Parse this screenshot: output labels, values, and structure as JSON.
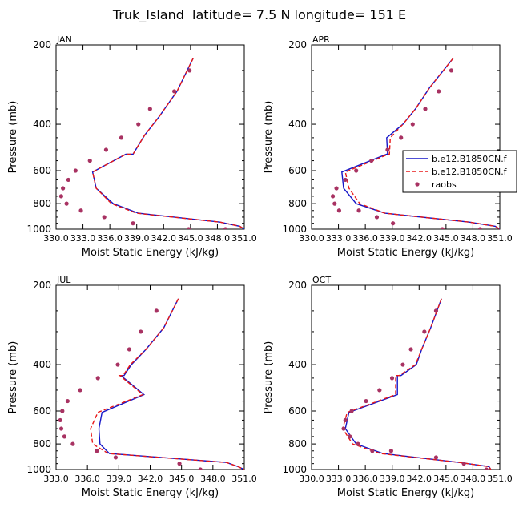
{
  "figure_title": "Truk_Island  latitude= 7.5 N longitude= 151 E",
  "colors": {
    "model_a": "#1515c8",
    "model_b": "#e81818",
    "raobs": "#a83262",
    "axis": "#000000"
  },
  "legend": {
    "entries": [
      {
        "label": "b.e12.B1850CN.f",
        "style": "solid-line",
        "color": "#1515c8"
      },
      {
        "label": "b.e12.B1850CN.f",
        "style": "dashed-line",
        "color": "#e81818"
      },
      {
        "label": "raobs",
        "style": "marker",
        "color": "#a83262"
      }
    ]
  },
  "chart_data": [
    {
      "type": "line",
      "panel": "JAN",
      "title": "JAN",
      "xlabel": "Moist Static Energy (kJ/kg)",
      "ylabel": "Pressure (mb)",
      "xlim": [
        330.03,
        351.0
      ],
      "ylim": [
        1000,
        200
      ],
      "yscale": "log",
      "xticks": [
        "330.0",
        "333.0",
        "336.0",
        "339.0",
        "342.0",
        "345.0",
        "348.0",
        "351.0"
      ],
      "yticks": [
        200,
        400,
        600,
        800,
        1000
      ],
      "series": [
        {
          "name": "b.e12.B1850CN.f",
          "style": "solid",
          "x": [
            345.3,
            343.5,
            341.5,
            339.9,
            338.6,
            337.8,
            334.1,
            334.5,
            336.4,
            339.2,
            348.3,
            350.5,
            351.0
          ],
          "y": [
            225,
            300,
            375,
            440,
            520,
            520,
            607,
            700,
            800,
            870,
            940,
            975,
            1000
          ]
        },
        {
          "name": "b.e12.B1850CN.f",
          "style": "dashed",
          "x": [
            345.3,
            343.5,
            341.5,
            339.9,
            338.6,
            337.8,
            334.1,
            334.5,
            336.2,
            339.0,
            348.3,
            350.5,
            351.0
          ],
          "y": [
            225,
            300,
            375,
            440,
            520,
            520,
            607,
            700,
            800,
            870,
            940,
            975,
            1000
          ]
        },
        {
          "name": "raobs",
          "style": "markers",
          "x": [
            344.9,
            343.2,
            340.5,
            339.2,
            337.3,
            335.6,
            333.8,
            332.2,
            331.4,
            330.8,
            330.6,
            331.2,
            332.8,
            335.4,
            338.6,
            344.8,
            348.9
          ],
          "y": [
            250,
            300,
            350,
            400,
            450,
            500,
            550,
            600,
            650,
            700,
            750,
            800,
            850,
            900,
            950,
            1000,
            1000
          ]
        }
      ]
    },
    {
      "type": "line",
      "panel": "APR",
      "title": "APR",
      "xlabel": "Moist Static Energy (kJ/kg)",
      "ylabel": "Pressure (mb)",
      "xlim": [
        330.03,
        351.0
      ],
      "ylim": [
        1000,
        200
      ],
      "yscale": "log",
      "xticks": [
        "330.0",
        "333.0",
        "336.0",
        "339.0",
        "342.0",
        "345.0",
        "348.0",
        "351.0"
      ],
      "yticks": [
        200,
        400,
        600,
        800,
        1000
      ],
      "series": [
        {
          "name": "b.e12.B1850CN.f",
          "style": "solid",
          "x": [
            345.8,
            343.2,
            341.6,
            340.2,
            338.4,
            338.5,
            338.4,
            333.4,
            333.6,
            335.0,
            338.2,
            347.6,
            350.5,
            351.0
          ],
          "y": [
            225,
            290,
            350,
            400,
            450,
            520,
            520,
            607,
            700,
            800,
            870,
            940,
            975,
            1000
          ]
        },
        {
          "name": "b.e12.B1850CN.f",
          "style": "dashed",
          "x": [
            345.8,
            343.2,
            341.6,
            340.2,
            338.8,
            338.7,
            338.6,
            333.8,
            334.2,
            335.4,
            338.2,
            347.6,
            350.5,
            351.0
          ],
          "y": [
            225,
            290,
            350,
            400,
            450,
            520,
            520,
            607,
            700,
            800,
            870,
            940,
            975,
            1000
          ]
        },
        {
          "name": "raobs",
          "style": "markers",
          "x": [
            345.6,
            344.2,
            342.7,
            341.3,
            340.0,
            338.5,
            336.7,
            335.0,
            333.8,
            332.8,
            332.4,
            332.6,
            333.1,
            335.3,
            337.3,
            339.1,
            344.6,
            348.8
          ],
          "y": [
            250,
            300,
            350,
            400,
            450,
            500,
            550,
            600,
            650,
            700,
            750,
            800,
            850,
            850,
            900,
            950,
            1000,
            1000
          ]
        }
      ]
    },
    {
      "type": "line",
      "panel": "JUL",
      "title": "JUL",
      "xlabel": "Moist Static Energy (kJ/kg)",
      "ylabel": "Pressure (mb)",
      "xlim": [
        333.0,
        351.0
      ],
      "ylim": [
        1000,
        200
      ],
      "yscale": "log",
      "xticks": [
        "333.0",
        "336.0",
        "339.0",
        "342.0",
        "345.0",
        "348.0",
        "351.0"
      ],
      "yticks": [
        200,
        400,
        600,
        800,
        1000
      ],
      "series": [
        {
          "name": "b.e12.B1850CN.f",
          "style": "solid",
          "x": [
            344.7,
            343.3,
            341.6,
            340.2,
            339.5,
            339.2,
            341.4,
            337.4,
            337.1,
            337.2,
            338.1,
            349.3,
            350.4,
            351.0
          ],
          "y": [
            225,
            290,
            350,
            400,
            440,
            440,
            520,
            607,
            700,
            800,
            870,
            940,
            975,
            1000
          ]
        },
        {
          "name": "b.e12.B1850CN.f",
          "style": "dashed",
          "x": [
            344.7,
            343.3,
            341.6,
            340.1,
            339.4,
            339.1,
            341.3,
            337.0,
            336.3,
            336.5,
            338.0,
            349.3,
            350.4,
            351.0
          ],
          "y": [
            225,
            290,
            350,
            400,
            440,
            440,
            520,
            607,
            700,
            800,
            870,
            940,
            975,
            1000
          ]
        },
        {
          "name": "raobs",
          "style": "markers",
          "x": [
            342.6,
            341.1,
            340.0,
            338.9,
            337.0,
            335.3,
            334.1,
            333.6,
            333.4,
            333.5,
            333.8,
            334.6,
            336.9,
            338.7,
            344.8,
            346.8
          ],
          "y": [
            250,
            300,
            350,
            400,
            450,
            500,
            550,
            600,
            650,
            700,
            750,
            800,
            850,
            900,
            950,
            1000
          ]
        }
      ]
    },
    {
      "type": "line",
      "panel": "OCT",
      "title": "OCT",
      "xlabel": "Moist Static Energy (kJ/kg)",
      "ylabel": "Pressure (mb)",
      "xlim": [
        330.03,
        351.0
      ],
      "ylim": [
        1000,
        200
      ],
      "yscale": "log",
      "xticks": [
        "330.0",
        "333.0",
        "336.0",
        "339.0",
        "342.0",
        "345.0",
        "348.0",
        "351.0"
      ],
      "yticks": [
        200,
        400,
        600,
        800,
        1000
      ],
      "series": [
        {
          "name": "b.e12.B1850CN.f",
          "style": "solid",
          "x": [
            344.5,
            343.3,
            342.3,
            341.7,
            340.0,
            339.6,
            339.6,
            334.2,
            333.8,
            335.0,
            338.0,
            346.5,
            349.8,
            350.0
          ],
          "y": [
            225,
            290,
            350,
            400,
            440,
            440,
            520,
            607,
            700,
            800,
            870,
            940,
            975,
            1000
          ]
        },
        {
          "name": "b.e12.B1850CN.f",
          "style": "dashed",
          "x": [
            344.5,
            343.3,
            342.3,
            341.6,
            339.8,
            339.4,
            339.4,
            334.0,
            333.5,
            334.6,
            337.7,
            346.5,
            349.8,
            350.0
          ],
          "y": [
            225,
            290,
            350,
            400,
            440,
            440,
            520,
            607,
            700,
            800,
            870,
            940,
            975,
            1000
          ]
        },
        {
          "name": "raobs",
          "style": "markers",
          "x": [
            343.9,
            342.6,
            341.1,
            340.2,
            339.0,
            337.6,
            336.1,
            334.5,
            333.8,
            333.6,
            334.3,
            335.2,
            336.8,
            338.9,
            343.9,
            347.0,
            349.5
          ],
          "y": [
            250,
            300,
            350,
            400,
            450,
            500,
            550,
            600,
            650,
            700,
            750,
            800,
            850,
            850,
            900,
            950,
            1000
          ]
        }
      ]
    }
  ]
}
